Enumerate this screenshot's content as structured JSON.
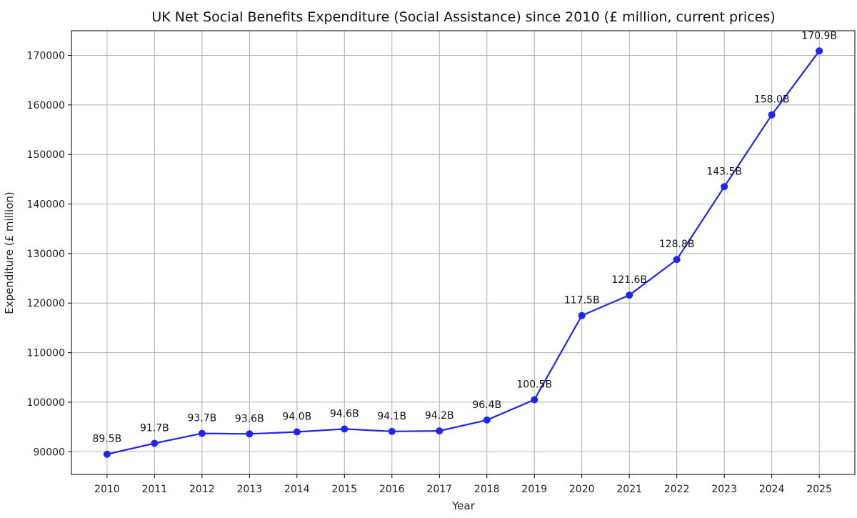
{
  "chart_data": {
    "type": "line",
    "title": "UK Net Social Benefits Expenditure (Social Assistance) since 2010 (£ million, current prices)",
    "xlabel": "Year",
    "ylabel": "Expenditure (£ million)",
    "x": [
      2010,
      2011,
      2012,
      2013,
      2014,
      2015,
      2016,
      2017,
      2018,
      2019,
      2020,
      2021,
      2022,
      2023,
      2024,
      2025
    ],
    "series": [
      {
        "values": [
          89500,
          91700,
          93700,
          93600,
          94000,
          94600,
          94100,
          94200,
          96400,
          100500,
          117500,
          121600,
          128800,
          143500,
          158000,
          170900
        ],
        "labels": [
          "89.5B",
          "91.7B",
          "93.7B",
          "93.6B",
          "94.0B",
          "94.6B",
          "94.1B",
          "94.2B",
          "96.4B",
          "100.5B",
          "117.5B",
          "121.6B",
          "128.8B",
          "143.5B",
          "158.0B",
          "170.9B"
        ],
        "color": "#1f24f0"
      }
    ],
    "yticks": [
      90000,
      100000,
      110000,
      120000,
      130000,
      140000,
      150000,
      160000,
      170000
    ],
    "ylim": [
      85424,
      174976
    ],
    "xlim": [
      2009.25,
      2025.75
    ],
    "grid": true,
    "legend": false
  }
}
